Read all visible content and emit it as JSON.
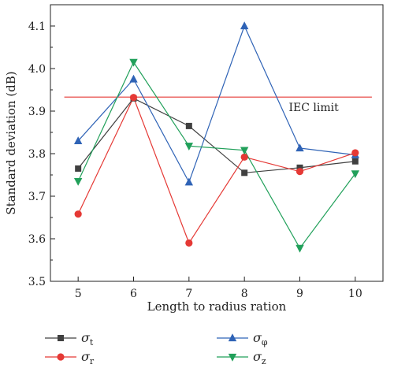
{
  "chart_data": {
    "type": "line",
    "xlabel": "Length to radius ration",
    "ylabel": "Standard deviation (dB)",
    "x": [
      5,
      6,
      7,
      8,
      9,
      10
    ],
    "xlim": [
      4.5,
      10.5
    ],
    "ylim": [
      3.5,
      4.15
    ],
    "xticks": [
      "5",
      "6",
      "7",
      "8",
      "9",
      "10"
    ],
    "yticks": [
      "3.5",
      "3.6",
      "3.7",
      "3.8",
      "3.9",
      "4.0",
      "4.1"
    ],
    "ytick_values": [
      3.5,
      3.6,
      3.7,
      3.8,
      3.9,
      4.0,
      4.1
    ],
    "grid": false,
    "legend_position": "bottom",
    "series": [
      {
        "name": "σt",
        "symbol": "σ",
        "subscript": "t",
        "color": "#404040",
        "marker": "square",
        "values": [
          3.765,
          3.93,
          3.865,
          3.755,
          3.767,
          3.782
        ]
      },
      {
        "name": "σφ",
        "symbol": "σ",
        "subscript": "φ",
        "color": "#2f63b6",
        "marker": "triangle-up",
        "values": [
          3.83,
          3.975,
          3.733,
          4.1,
          3.813,
          3.797
        ]
      },
      {
        "name": "σr",
        "symbol": "σ",
        "subscript": "r",
        "color": "#e53935",
        "marker": "circle",
        "values": [
          3.658,
          3.932,
          3.59,
          3.792,
          3.758,
          3.802
        ]
      },
      {
        "name": "σz",
        "symbol": "σ",
        "subscript": "z",
        "color": "#21a05a",
        "marker": "triangle-down",
        "values": [
          3.735,
          4.015,
          3.818,
          3.808,
          3.578,
          3.753
        ]
      }
    ],
    "reference_line": {
      "label": "IEC limit",
      "value": 3.933,
      "color": "#e53935"
    }
  }
}
